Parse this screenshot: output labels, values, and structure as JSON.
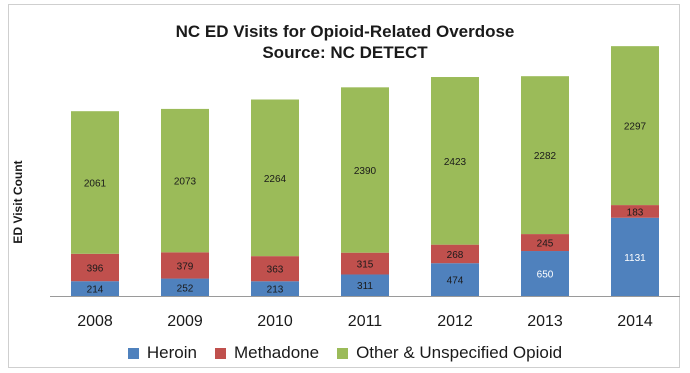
{
  "chart_data": {
    "type": "bar",
    "stacked": true,
    "title": "NC ED Visits for Opioid-Related Overdose",
    "subtitle": "Source: NC DETECT",
    "xlabel": "",
    "ylabel": "ED Visit Count",
    "ylim": [
      0,
      3700
    ],
    "grid": false,
    "legend_position": "bottom",
    "categories": [
      "2008",
      "2009",
      "2010",
      "2011",
      "2012",
      "2013",
      "2014"
    ],
    "series": [
      {
        "name": "Heroin",
        "color": "#4f81bd",
        "values": [
          214,
          252,
          213,
          311,
          474,
          650,
          1131
        ]
      },
      {
        "name": "Methadone",
        "color": "#c0504d",
        "values": [
          396,
          379,
          363,
          315,
          268,
          245,
          183
        ]
      },
      {
        "name": "Other & Unspecified Opioid",
        "color": "#9bbb59",
        "values": [
          2061,
          2073,
          2264,
          2390,
          2423,
          2282,
          2297
        ]
      }
    ]
  }
}
